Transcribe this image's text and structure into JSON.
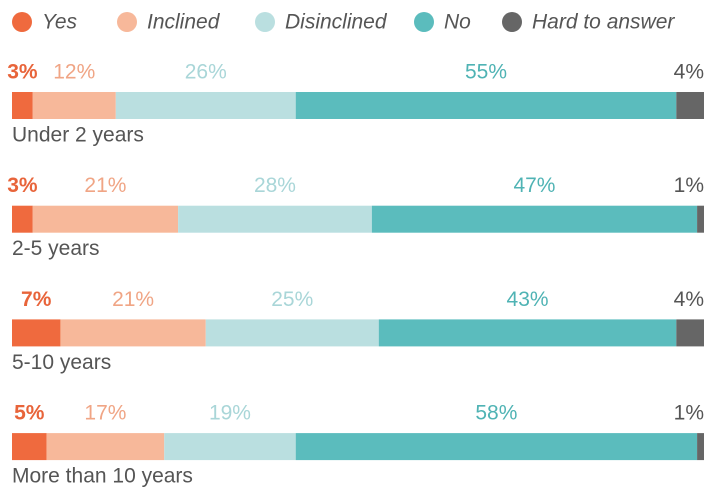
{
  "chart_data": {
    "type": "stacked_bar_horizontal",
    "categories": [
      "Under 2 years",
      "2-5 years",
      "5-10 years",
      "More than 10 years"
    ],
    "series": [
      {
        "name": "Yes",
        "color": "#ef6a3e",
        "values": [
          3,
          3,
          7,
          5
        ],
        "value_labels": [
          "3%",
          "3%",
          "7%",
          "5%"
        ]
      },
      {
        "name": "Inclined",
        "color": "#f7b89a",
        "values": [
          12,
          21,
          21,
          17
        ],
        "value_labels": [
          "12%",
          "21%",
          "21%",
          "17%"
        ]
      },
      {
        "name": "Disinclined",
        "color": "#badfe0",
        "values": [
          26,
          28,
          25,
          19
        ],
        "value_labels": [
          "26%",
          "28%",
          "25%",
          "19%"
        ]
      },
      {
        "name": "No",
        "color": "#5bbcbd",
        "values": [
          55,
          47,
          43,
          58
        ],
        "value_labels": [
          "55%",
          "47%",
          "43%",
          "58%"
        ]
      },
      {
        "name": "Hard to answer",
        "color": "#666666",
        "values": [
          4,
          1,
          4,
          1
        ],
        "value_labels": [
          "4%",
          "1%",
          "4%",
          "1%"
        ]
      }
    ],
    "legend": "top"
  }
}
